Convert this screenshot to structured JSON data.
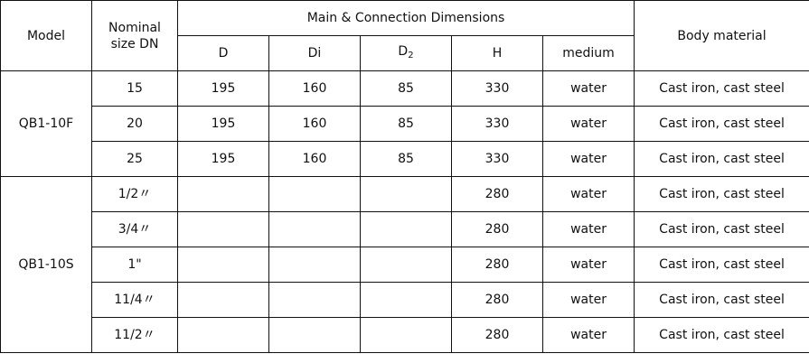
{
  "headers": {
    "model": "Model",
    "nominal_size": "Nominal size DN",
    "main_group": "Main & Connection Dimensions",
    "body_material": "Body material",
    "sub": [
      {
        "label": "D",
        "subscript": ""
      },
      {
        "label": "Di",
        "subscript": ""
      },
      {
        "label": "D",
        "subscript": "2"
      },
      {
        "label": "H",
        "subscript": ""
      },
      {
        "label": "medium",
        "subscript": ""
      }
    ]
  },
  "groups": [
    {
      "model": "QB1-10F",
      "rows": [
        {
          "dn": "15",
          "D": "195",
          "Di": "160",
          "D2": "85",
          "H": "330",
          "medium": "water",
          "material": "Cast iron, cast steel"
        },
        {
          "dn": "20",
          "D": "195",
          "Di": "160",
          "D2": "85",
          "H": "330",
          "medium": "water",
          "material": "Cast iron, cast steel"
        },
        {
          "dn": "25",
          "D": "195",
          "Di": "160",
          "D2": "85",
          "H": "330",
          "medium": "water",
          "material": "Cast iron, cast steel"
        }
      ]
    },
    {
      "model": "QB1-10S",
      "rows": [
        {
          "dn": "1/2〃",
          "D": "",
          "Di": "",
          "D2": "",
          "H": "280",
          "medium": "water",
          "material": "Cast iron, cast steel"
        },
        {
          "dn": "3/4〃",
          "D": "",
          "Di": "",
          "D2": "",
          "H": "280",
          "medium": "water",
          "material": "Cast iron, cast steel"
        },
        {
          "dn": "1\"",
          "D": "",
          "Di": "",
          "D2": "",
          "H": "280",
          "medium": "water",
          "material": "Cast iron, cast steel"
        },
        {
          "dn": "11/4〃",
          "D": "",
          "Di": "",
          "D2": "",
          "H": "280",
          "medium": "water",
          "material": "Cast iron, cast steel"
        },
        {
          "dn": "11/2〃",
          "D": "",
          "Di": "",
          "D2": "",
          "H": "280",
          "medium": "water",
          "material": "Cast iron, cast steel"
        }
      ]
    }
  ]
}
